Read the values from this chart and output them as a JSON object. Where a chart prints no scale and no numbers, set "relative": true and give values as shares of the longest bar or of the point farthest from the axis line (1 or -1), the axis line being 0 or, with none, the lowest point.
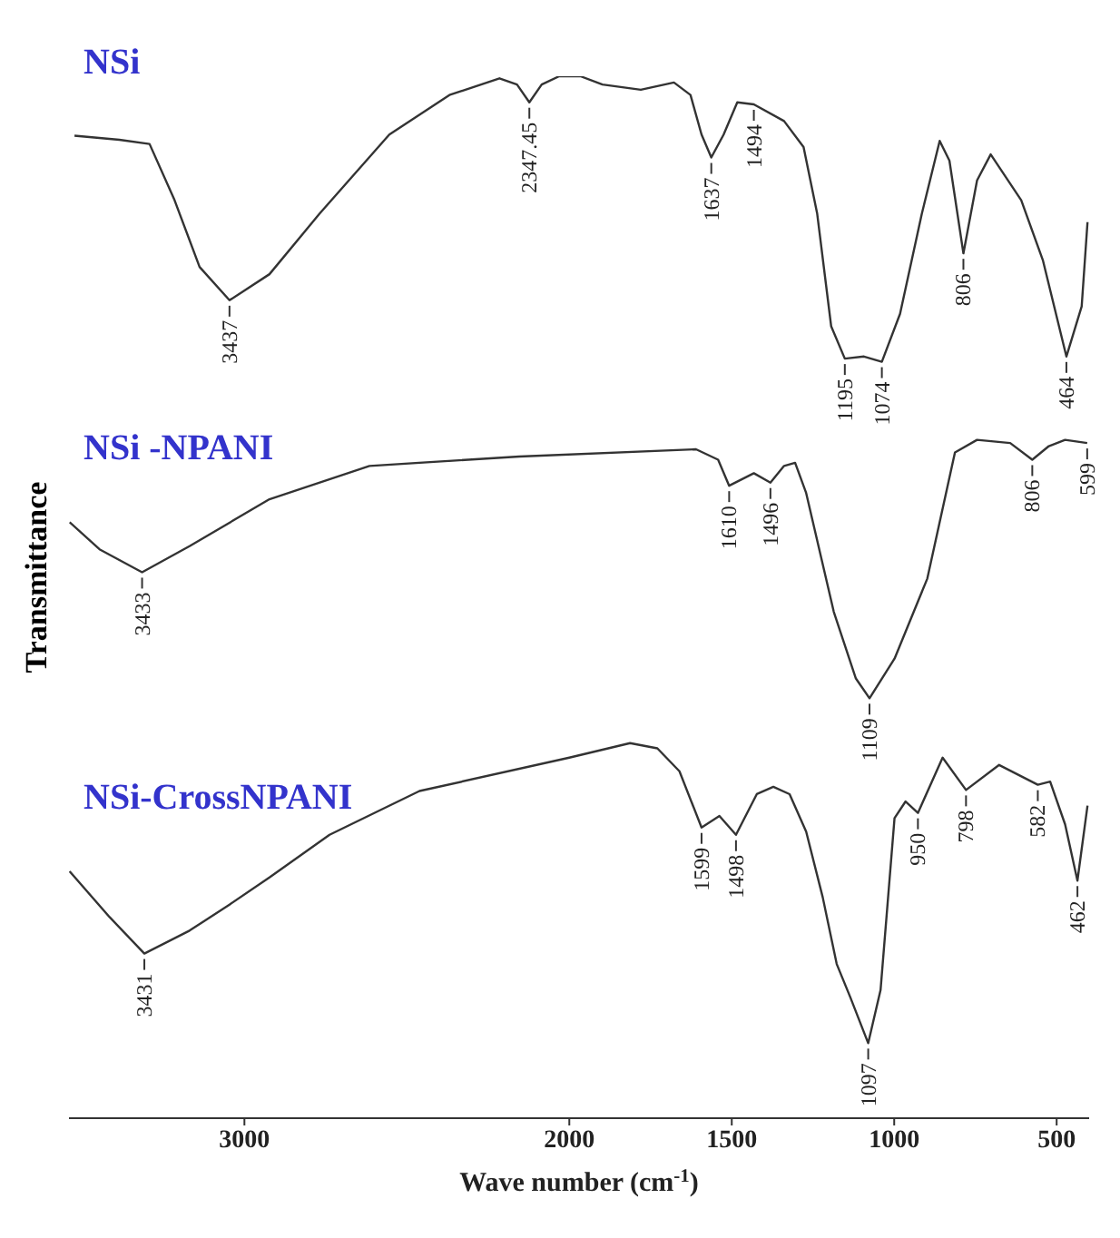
{
  "chart_data": {
    "type": "line",
    "relative": true,
    "xlabel": "Wave number (cm$^{-1}$)",
    "ylabel": "Transmittance",
    "xlim": [
      3540,
      400
    ],
    "xticks": [
      3000,
      2000,
      1500,
      1000,
      500
    ],
    "grid": false,
    "legend": false,
    "series": [
      {
        "name": "NSi",
        "color": "#333333",
        "x": [
          3523,
          3385,
          3292,
          3215,
          3138,
          3046,
          2923,
          2769,
          2554,
          2369,
          2215,
          2161,
          2123,
          2085,
          2031,
          1966,
          1898,
          1780,
          1678,
          1627,
          1593,
          1563,
          1525,
          1483,
          1432,
          1339,
          1279,
          1237,
          1194,
          1152,
          1093,
          1038,
          982,
          915,
          860,
          830,
          787,
          745,
          703,
          609,
          542,
          470,
          423,
          405
        ],
        "values": [
          0.943,
          0.939,
          0.935,
          0.881,
          0.817,
          0.785,
          0.81,
          0.868,
          0.944,
          0.982,
          0.998,
          0.992,
          0.975,
          0.992,
          1.0,
          1.0,
          0.992,
          0.987,
          0.994,
          0.982,
          0.944,
          0.922,
          0.944,
          0.975,
          0.973,
          0.957,
          0.932,
          0.868,
          0.76,
          0.729,
          0.731,
          0.726,
          0.772,
          0.868,
          0.938,
          0.919,
          0.83,
          0.9,
          0.925,
          0.881,
          0.823,
          0.731,
          0.779,
          0.86
        ]
      },
      {
        "name": "NSi -NPANI",
        "color": "#333333",
        "x": [
          3538,
          3446,
          3315,
          3169,
          2923,
          2615,
          2154,
          1610,
          1542,
          1508,
          1432,
          1381,
          1339,
          1305,
          1271,
          1186,
          1118,
          1076,
          999,
          898,
          813,
          745,
          643,
          575,
          524,
          474,
          406
        ],
        "values": [
          0.572,
          0.546,
          0.524,
          0.549,
          0.594,
          0.626,
          0.635,
          0.642,
          0.632,
          0.607,
          0.619,
          0.61,
          0.626,
          0.629,
          0.6,
          0.486,
          0.422,
          0.403,
          0.441,
          0.518,
          0.639,
          0.651,
          0.648,
          0.632,
          0.645,
          0.651,
          0.648
        ]
      },
      {
        "name": "NSi-CrossNPANI",
        "color": "#333333",
        "x": [
          3538,
          3415,
          3308,
          3169,
          3046,
          2923,
          2738,
          2461,
          2000,
          1813,
          1729,
          1661,
          1593,
          1538,
          1487,
          1423,
          1372,
          1322,
          1271,
          1220,
          1177,
          1135,
          1080,
          1042,
          999,
          965,
          927,
          851,
          779,
          677,
          558,
          520,
          474,
          436,
          405
        ],
        "values": [
          0.237,
          0.193,
          0.158,
          0.18,
          0.205,
          0.231,
          0.272,
          0.314,
          0.346,
          0.36,
          0.355,
          0.333,
          0.279,
          0.29,
          0.272,
          0.311,
          0.318,
          0.311,
          0.275,
          0.212,
          0.148,
          0.116,
          0.072,
          0.123,
          0.288,
          0.304,
          0.293,
          0.346,
          0.315,
          0.339,
          0.32,
          0.323,
          0.282,
          0.228,
          0.3
        ]
      }
    ],
    "annotations": [
      {
        "text": "3437",
        "x": 3046,
        "y": 0.785
      },
      {
        "text": "2347.45",
        "x": 2123,
        "y": 0.975
      },
      {
        "text": "1637",
        "x": 1563,
        "y": 0.922
      },
      {
        "text": "1494",
        "x": 1432,
        "y": 0.973
      },
      {
        "text": "1195",
        "x": 1152,
        "y": 0.729
      },
      {
        "text": "1074",
        "x": 1038,
        "y": 0.726
      },
      {
        "text": "806",
        "x": 787,
        "y": 0.83
      },
      {
        "text": "464",
        "x": 470,
        "y": 0.731
      },
      {
        "text": "3433",
        "x": 3315,
        "y": 0.524
      },
      {
        "text": "1610",
        "x": 1508,
        "y": 0.607
      },
      {
        "text": "1496",
        "x": 1381,
        "y": 0.61
      },
      {
        "text": "1109",
        "x": 1076,
        "y": 0.403
      },
      {
        "text": "806",
        "x": 575,
        "y": 0.632
      },
      {
        "text": "599",
        "x": 406,
        "y": 0.648
      },
      {
        "text": "3431",
        "x": 3308,
        "y": 0.158
      },
      {
        "text": "1599",
        "x": 1593,
        "y": 0.279
      },
      {
        "text": "1498",
        "x": 1487,
        "y": 0.272
      },
      {
        "text": "1097",
        "x": 1080,
        "y": 0.072
      },
      {
        "text": "950",
        "x": 927,
        "y": 0.293
      },
      {
        "text": "798",
        "x": 779,
        "y": 0.315
      },
      {
        "text": "582",
        "x": 558,
        "y": 0.32
      },
      {
        "text": "462",
        "x": 436,
        "y": 0.228
      }
    ]
  }
}
